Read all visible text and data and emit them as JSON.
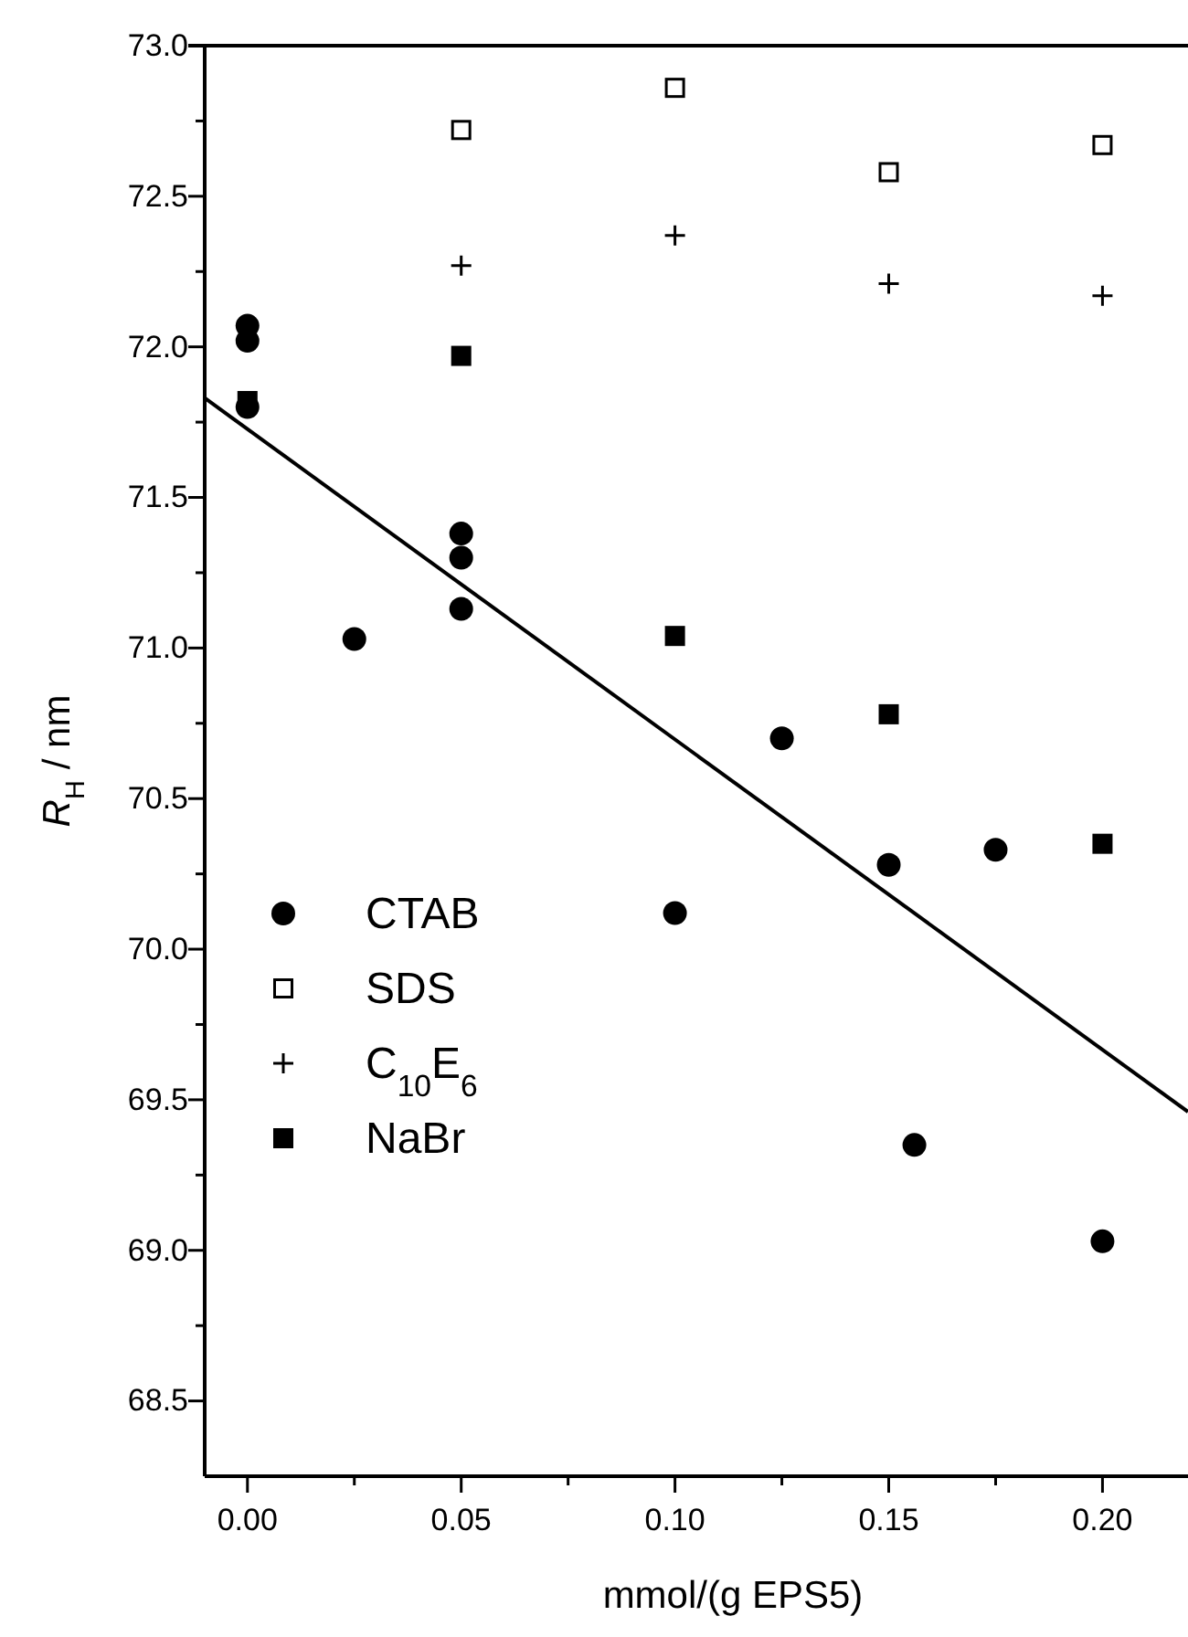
{
  "chart_data": {
    "type": "scatter",
    "xlabel": "mmol/(g EPS5)",
    "ylabel": "R$_{H}$ / nm",
    "xlim": [
      -0.01,
      0.22
    ],
    "ylim": [
      68.25,
      73.0
    ],
    "xticks": [
      {
        "value": 0,
        "label": "0.00"
      },
      {
        "value": 0.025,
        "label": null
      },
      {
        "value": 0.05,
        "label": "0.05"
      },
      {
        "value": 0.075,
        "label": null
      },
      {
        "value": 0.1,
        "label": "0.10"
      },
      {
        "value": 0.125,
        "label": null
      },
      {
        "value": 0.15,
        "label": "0.15"
      },
      {
        "value": 0.175,
        "label": null
      },
      {
        "value": 0.2,
        "label": "0.20"
      }
    ],
    "yticks": [
      {
        "value": 68.5,
        "label": "68.5"
      },
      {
        "value": 68.75,
        "label": null
      },
      {
        "value": 69,
        "label": "69.0"
      },
      {
        "value": 69.25,
        "label": null
      },
      {
        "value": 69.5,
        "label": "69.5"
      },
      {
        "value": 69.75,
        "label": null
      },
      {
        "value": 70,
        "label": "70.0"
      },
      {
        "value": 70.25,
        "label": null
      },
      {
        "value": 70.5,
        "label": "70.5"
      },
      {
        "value": 70.75,
        "label": null
      },
      {
        "value": 71,
        "label": "71.0"
      },
      {
        "value": 71.25,
        "label": null
      },
      {
        "value": 71.5,
        "label": "71.5"
      },
      {
        "value": 71.75,
        "label": null
      },
      {
        "value": 72,
        "label": "72.0"
      },
      {
        "value": 72.25,
        "label": null
      },
      {
        "value": 72.5,
        "label": "72.5"
      },
      {
        "value": 72.75,
        "label": null
      },
      {
        "value": 73,
        "label": "73.0"
      }
    ],
    "legend": "left",
    "grid": false,
    "series": [
      {
        "name": "CTAB",
        "color": "#000000",
        "marker": "circle",
        "x": [
          0,
          0,
          0,
          0.025,
          0.05,
          0.05,
          0.05,
          0.1,
          0.125,
          0.15,
          0.156,
          0.175,
          0.2
        ],
        "values": [
          72.07,
          72.02,
          71.8,
          71.03,
          71.38,
          71.3,
          71.13,
          70.12,
          70.7,
          70.28,
          69.35,
          70.33,
          69.03
        ]
      },
      {
        "name": "SDS",
        "color": "#000000",
        "marker": "square-open",
        "x": [
          0.05,
          0.1,
          0.15,
          0.2
        ],
        "values": [
          72.72,
          72.86,
          72.58,
          72.67
        ]
      },
      {
        "name": "C$_{10}$E$_{6}$",
        "color": "#000000",
        "marker": "cross",
        "x": [
          0.05,
          0.1,
          0.15,
          0.2
        ],
        "values": [
          72.27,
          72.37,
          72.21,
          72.17
        ]
      },
      {
        "name": "NaBr",
        "color": "#000000",
        "marker": "square",
        "x": [
          0,
          0.05,
          0.1,
          0.15,
          0.2
        ],
        "values": [
          71.82,
          71.97,
          71.04,
          70.78,
          70.35
        ]
      },
      {
        "type": "line",
        "color": "#000000",
        "line_style": "solid",
        "marker": "none",
        "x": [
          -0.01,
          0.22
        ],
        "values": [
          71.83,
          69.46
        ]
      }
    ]
  }
}
